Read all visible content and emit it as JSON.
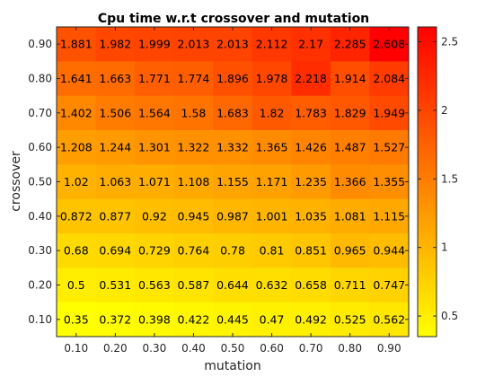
{
  "chart_data": {
    "type": "heatmap",
    "title": "Cpu time w.r.t crossover and mutation",
    "xlabel": "mutation",
    "ylabel": "crossover",
    "x_ticks": [
      "0.10",
      "0.20",
      "0.30",
      "0.40",
      "0.50",
      "0.60",
      "0.70",
      "0.80",
      "0.90"
    ],
    "y_ticks": [
      "0.90",
      "0.80",
      "0.70",
      "0.60",
      "0.50",
      "0.40",
      "0.30",
      "0.20",
      "0.10"
    ],
    "rows": [
      [
        "1.881",
        "1.982",
        "1.999",
        "2.013",
        "2.013",
        "2.112",
        "2.17",
        "2.285",
        "2.608"
      ],
      [
        "1.641",
        "1.663",
        "1.771",
        "1.774",
        "1.896",
        "1.978",
        "2.218",
        "1.914",
        "2.084"
      ],
      [
        "1.402",
        "1.506",
        "1.564",
        "1.58",
        "1.683",
        "1.82",
        "1.783",
        "1.829",
        "1.949"
      ],
      [
        "1.208",
        "1.244",
        "1.301",
        "1.322",
        "1.332",
        "1.365",
        "1.426",
        "1.487",
        "1.527"
      ],
      [
        "1.02",
        "1.063",
        "1.071",
        "1.108",
        "1.155",
        "1.171",
        "1.235",
        "1.366",
        "1.355"
      ],
      [
        "0.872",
        "0.877",
        "0.92",
        "0.945",
        "0.987",
        "1.001",
        "1.035",
        "1.081",
        "1.115"
      ],
      [
        "0.68",
        "0.694",
        "0.729",
        "0.764",
        "0.78",
        "0.81",
        "0.851",
        "0.965",
        "0.944"
      ],
      [
        "0.5",
        "0.531",
        "0.563",
        "0.587",
        "0.644",
        "0.632",
        "0.658",
        "0.711",
        "0.747"
      ],
      [
        "0.35",
        "0.372",
        "0.398",
        "0.422",
        "0.445",
        "0.47",
        "0.492",
        "0.525",
        "0.562"
      ]
    ],
    "colormap": "autumn-reversed",
    "color_low": "#ffff00",
    "color_high": "#ff0000",
    "clim": [
      0.35,
      2.608
    ],
    "colorbar_ticks": [
      "0.5",
      "1",
      "1.5",
      "2",
      "2.5"
    ],
    "grid": false,
    "legend": "colorbar-right"
  }
}
